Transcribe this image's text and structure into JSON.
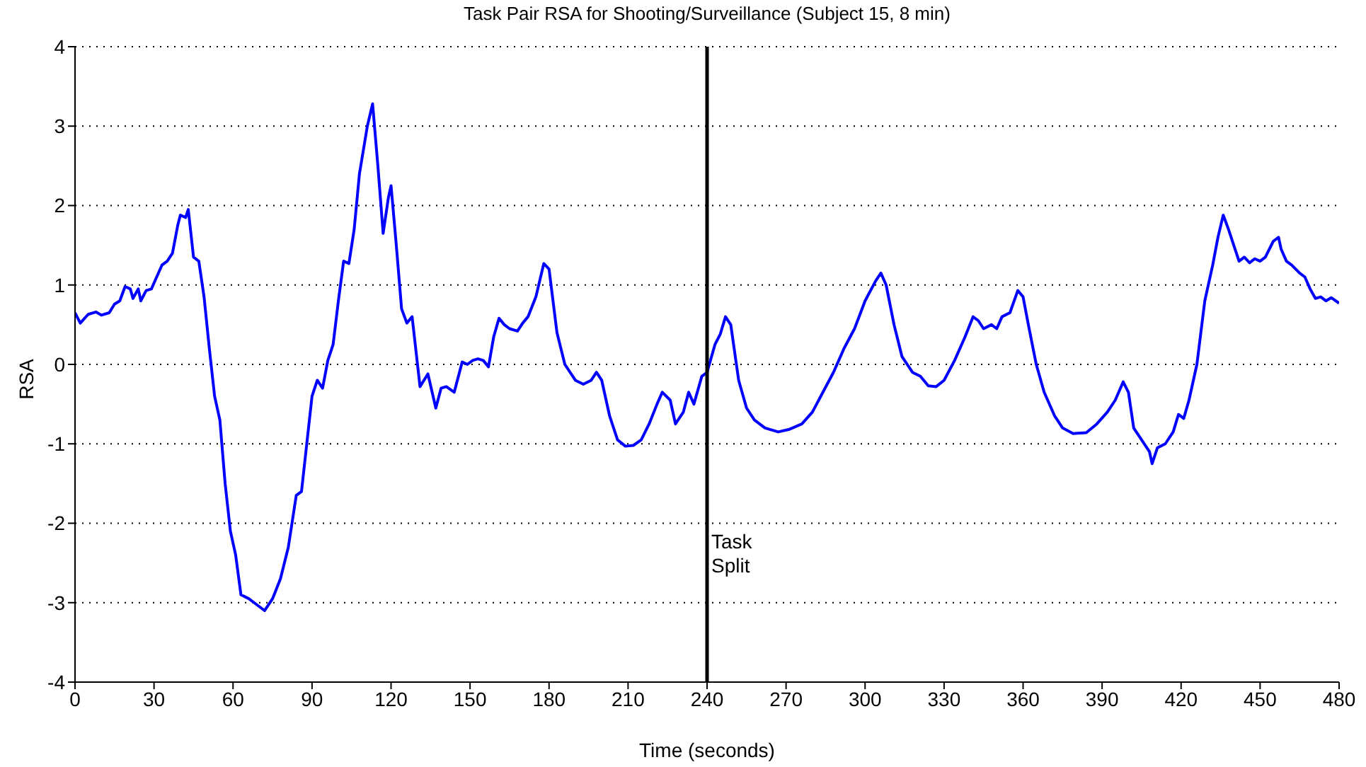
{
  "chart_data": {
    "type": "line",
    "title": "Task Pair RSA for Shooting/Surveillance (Subject 15, 8 min)",
    "xlabel": "Time (seconds)",
    "ylabel": "RSA",
    "xlim": [
      0,
      480
    ],
    "xticks": [
      0,
      30,
      60,
      90,
      120,
      150,
      180,
      210,
      240,
      270,
      300,
      330,
      360,
      390,
      420,
      450,
      480
    ],
    "ylim": [
      -4,
      4
    ],
    "yticks": [
      -4,
      -3,
      -2,
      -1,
      0,
      1,
      2,
      3,
      4
    ],
    "grid": "y",
    "legend": false,
    "marker": "none",
    "line_style": "solid",
    "ref_lines": [
      {
        "axis": "x",
        "value": 240,
        "label": "Task Split",
        "color": "#000000",
        "line_style": "solid"
      }
    ],
    "series": [
      {
        "color": "#0000ff",
        "x": [
          0,
          2,
          5,
          8,
          10,
          13,
          15,
          17,
          19,
          21,
          22,
          24,
          25,
          27,
          29,
          31,
          33,
          35,
          37,
          39,
          40,
          42,
          43,
          45,
          47,
          49,
          51,
          53,
          55,
          57,
          59,
          61,
          63,
          66,
          68,
          72,
          75,
          78,
          81,
          84,
          86,
          88,
          90,
          92,
          94,
          96,
          98,
          100,
          102,
          104,
          106,
          108,
          111,
          113,
          115,
          117,
          119,
          120,
          122,
          124,
          126,
          128,
          131,
          134,
          137,
          139,
          141,
          144,
          147,
          149,
          151,
          153,
          155,
          157,
          159,
          161,
          163,
          165,
          168,
          170,
          172,
          175,
          178,
          180,
          183,
          186,
          190,
          193,
          196,
          198,
          200,
          203,
          206,
          209,
          212,
          215,
          218,
          221,
          223,
          226,
          228,
          231,
          233,
          235,
          238,
          240,
          243,
          245,
          247,
          249,
          252,
          255,
          258,
          262,
          267,
          271,
          276,
          280,
          284,
          288,
          292,
          296,
          300,
          304,
          306,
          308,
          311,
          314,
          318,
          321,
          324,
          327,
          330,
          334,
          338,
          341,
          343,
          345,
          348,
          350,
          352,
          355,
          358,
          360,
          362,
          365,
          368,
          372,
          375,
          379,
          384,
          388,
          392,
          395,
          398,
          400,
          402,
          405,
          408,
          409,
          411,
          414,
          417,
          419,
          421,
          423,
          426,
          429,
          432,
          434,
          436,
          438,
          440,
          442,
          444,
          446,
          448,
          450,
          452,
          455,
          457,
          458,
          460,
          462,
          465,
          467,
          469,
          471,
          473,
          475,
          477,
          480
        ],
        "values": [
          0.65,
          0.52,
          0.63,
          0.66,
          0.62,
          0.65,
          0.76,
          0.8,
          0.98,
          0.95,
          0.83,
          0.95,
          0.8,
          0.93,
          0.95,
          1.1,
          1.25,
          1.3,
          1.4,
          1.75,
          1.88,
          1.85,
          1.95,
          1.35,
          1.3,
          0.85,
          0.2,
          -0.4,
          -0.7,
          -1.5,
          -2.1,
          -2.4,
          -2.9,
          -2.95,
          -3.0,
          -3.1,
          -2.95,
          -2.7,
          -2.3,
          -1.65,
          -1.6,
          -1.0,
          -0.4,
          -0.2,
          -0.3,
          0.05,
          0.25,
          0.8,
          1.3,
          1.27,
          1.7,
          2.4,
          3.0,
          3.28,
          2.5,
          1.65,
          2.1,
          2.25,
          1.5,
          0.7,
          0.52,
          0.6,
          -0.28,
          -0.12,
          -0.55,
          -0.3,
          -0.28,
          -0.35,
          0.03,
          0.0,
          0.05,
          0.07,
          0.05,
          -0.03,
          0.35,
          0.58,
          0.5,
          0.45,
          0.42,
          0.52,
          0.6,
          0.85,
          1.27,
          1.2,
          0.4,
          0.0,
          -0.2,
          -0.25,
          -0.2,
          -0.1,
          -0.2,
          -0.65,
          -0.95,
          -1.03,
          -1.02,
          -0.95,
          -0.75,
          -0.5,
          -0.35,
          -0.45,
          -0.75,
          -0.6,
          -0.35,
          -0.5,
          -0.15,
          -0.1,
          0.25,
          0.38,
          0.6,
          0.5,
          -0.2,
          -0.55,
          -0.7,
          -0.8,
          -0.85,
          -0.82,
          -0.75,
          -0.6,
          -0.35,
          -0.1,
          0.2,
          0.45,
          0.8,
          1.05,
          1.15,
          1.0,
          0.5,
          0.1,
          -0.1,
          -0.15,
          -0.27,
          -0.28,
          -0.2,
          0.05,
          0.35,
          0.6,
          0.55,
          0.45,
          0.5,
          0.45,
          0.6,
          0.65,
          0.93,
          0.85,
          0.5,
          0.0,
          -0.35,
          -0.65,
          -0.8,
          -0.87,
          -0.86,
          -0.75,
          -0.6,
          -0.45,
          -0.22,
          -0.35,
          -0.8,
          -0.95,
          -1.1,
          -1.25,
          -1.05,
          -1.0,
          -0.85,
          -0.63,
          -0.68,
          -0.45,
          0.0,
          0.8,
          1.25,
          1.6,
          1.88,
          1.7,
          1.5,
          1.3,
          1.35,
          1.28,
          1.33,
          1.3,
          1.35,
          1.55,
          1.6,
          1.45,
          1.3,
          1.25,
          1.15,
          1.1,
          0.95,
          0.83,
          0.85,
          0.8,
          0.84,
          0.77
        ]
      }
    ]
  }
}
